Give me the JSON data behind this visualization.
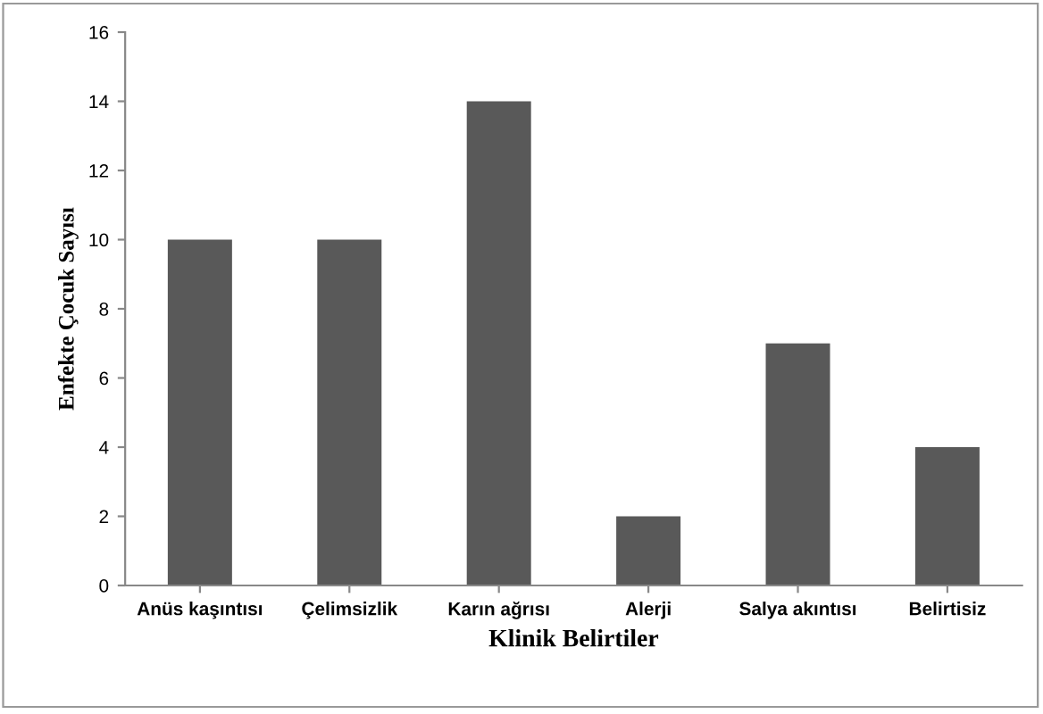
{
  "chart_data": {
    "type": "bar",
    "xlabel": "Klinik Belirtiler",
    "ylabel": "Enfekte Çocuk Sayısı",
    "categories": [
      "Anüs kaşıntısı",
      "Çelimsizlik",
      "Karın ağrısı",
      "Alerji",
      "Salya akıntısı",
      "Belirtisiz"
    ],
    "values": [
      10,
      10,
      14,
      2,
      7,
      4
    ],
    "color": "#595959",
    "ylim": [
      0,
      16
    ],
    "yticks": [
      0,
      2,
      4,
      6,
      8,
      10,
      12,
      14,
      16
    ],
    "grid": false,
    "legend": false
  }
}
